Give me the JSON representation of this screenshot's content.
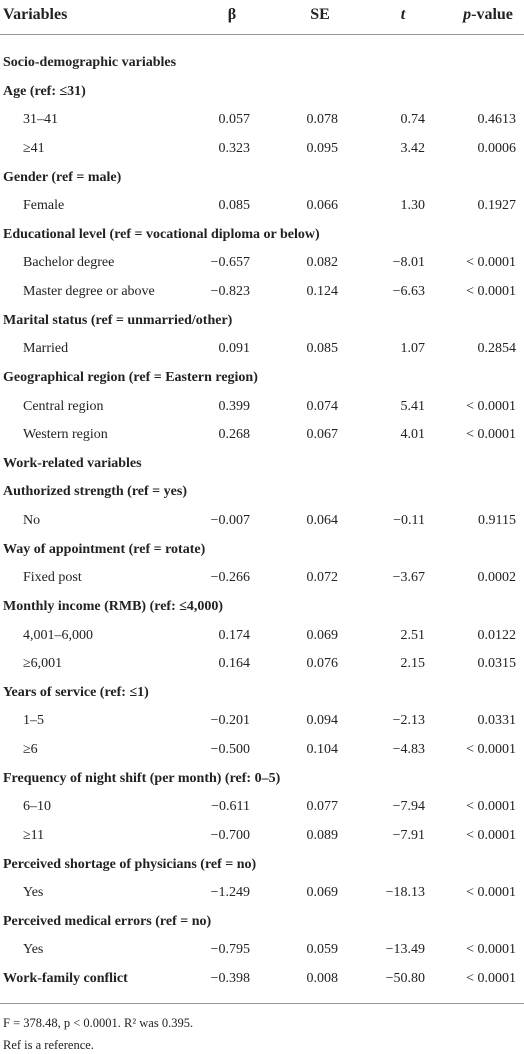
{
  "table": {
    "header": [
      "Variables",
      "β",
      "SE",
      "t",
      "p-value"
    ],
    "rows": [
      [
        "Socio-demographic variables"
      ],
      [
        "Age (ref: ≤31)"
      ],
      [
        "31–41",
        "0.057",
        "0.078",
        "0.74",
        "0.4613"
      ],
      [
        "≥41",
        "0.323",
        "0.095",
        "3.42",
        "0.0006"
      ],
      [
        "Gender (ref = male)"
      ],
      [
        "Female",
        "0.085",
        "0.066",
        "1.30",
        "0.1927"
      ],
      [
        "Educational level (ref = vocational diploma or below)"
      ],
      [
        "Bachelor degree",
        "−0.657",
        "0.082",
        "−8.01",
        "< 0.0001"
      ],
      [
        "Master degree or above",
        "−0.823",
        "0.124",
        "−6.63",
        "< 0.0001"
      ],
      [
        "Marital status (ref = unmarried/other)"
      ],
      [
        "Married",
        "0.091",
        "0.085",
        "1.07",
        "0.2854"
      ],
      [
        "Geographical region (ref = Eastern region)"
      ],
      [
        "Central region",
        "0.399",
        "0.074",
        "5.41",
        "< 0.0001"
      ],
      [
        "Western region",
        "0.268",
        "0.067",
        "4.01",
        "< 0.0001"
      ],
      [
        "Work-related variables"
      ],
      [
        "Authorized strength (ref = yes)"
      ],
      [
        "No",
        "−0.007",
        "0.064",
        "−0.11",
        "0.9115"
      ],
      [
        "Way of appointment (ref = rotate)"
      ],
      [
        "Fixed post",
        "−0.266",
        "0.072",
        "−3.67",
        "0.0002"
      ],
      [
        "Monthly income (RMB) (ref: ≤4,000)"
      ],
      [
        "4,001–6,000",
        "0.174",
        "0.069",
        "2.51",
        "0.0122"
      ],
      [
        "≥6,001",
        "0.164",
        "0.076",
        "2.15",
        "0.0315"
      ],
      [
        "Years of service (ref: ≤1)"
      ],
      [
        "1–5",
        "−0.201",
        "0.094",
        "−2.13",
        "0.0331"
      ],
      [
        "≥6",
        "−0.500",
        "0.104",
        "−4.83",
        "< 0.0001"
      ],
      [
        "Frequency of night shift (per month) (ref: 0–5)"
      ],
      [
        "6–10",
        "−0.611",
        "0.077",
        "−7.94",
        "< 0.0001"
      ],
      [
        "≥11",
        "−0.700",
        "0.089",
        "−7.91",
        "< 0.0001"
      ],
      [
        "Perceived shortage of physicians (ref = no)"
      ],
      [
        "Yes",
        "−1.249",
        "0.069",
        "−18.13",
        "< 0.0001"
      ],
      [
        "Perceived medical errors (ref = no)"
      ],
      [
        "Yes",
        "−0.795",
        "0.059",
        "−13.49",
        "< 0.0001"
      ],
      [
        "Work-family conflict",
        "−0.398",
        "0.008",
        "−50.80",
        "< 0.0001"
      ]
    ],
    "footnotes": [
      "F = 378.48, p < 0.0001. R² was 0.395.",
      "Ref is a reference."
    ]
  }
}
